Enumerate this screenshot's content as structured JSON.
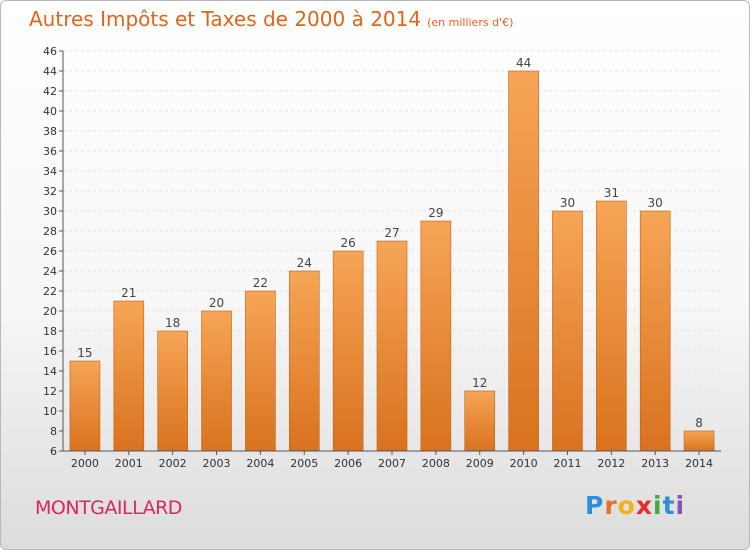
{
  "header": {
    "title": "Autres Impôts et Taxes de 2000 à 2014",
    "unit": "(en milliers d'€)"
  },
  "footer": {
    "place": "MONTGAILLARD",
    "logo_letters": [
      "P",
      "r",
      "o",
      "x",
      "i",
      "t",
      "i"
    ],
    "logo_colors": [
      "#2e8fd8",
      "#e8702a",
      "#f0b21d",
      "#e62c2c",
      "#46a83c",
      "#2e8fd8",
      "#8a4fb8"
    ]
  },
  "colors": {
    "bar_top": "#f6a556",
    "bar_bottom": "#d9721e",
    "bar_edge": "#c56114",
    "axis": "#555555",
    "grid": "#e2e2e2"
  },
  "chart_data": {
    "type": "bar",
    "title": "Autres Impôts et Taxes de 2000 à 2014",
    "subtitle": "(en milliers d'€)",
    "categories": [
      "2000",
      "2001",
      "2002",
      "2003",
      "2004",
      "2005",
      "2006",
      "2007",
      "2008",
      "2009",
      "2010",
      "2011",
      "2012",
      "2013",
      "2014"
    ],
    "values": [
      15,
      21,
      18,
      20,
      22,
      24,
      26,
      27,
      29,
      12,
      44,
      30,
      31,
      30,
      8
    ],
    "ylim": [
      6,
      46
    ],
    "ytick_step": 2,
    "grid": "horizontal dashed",
    "legend": "none"
  }
}
